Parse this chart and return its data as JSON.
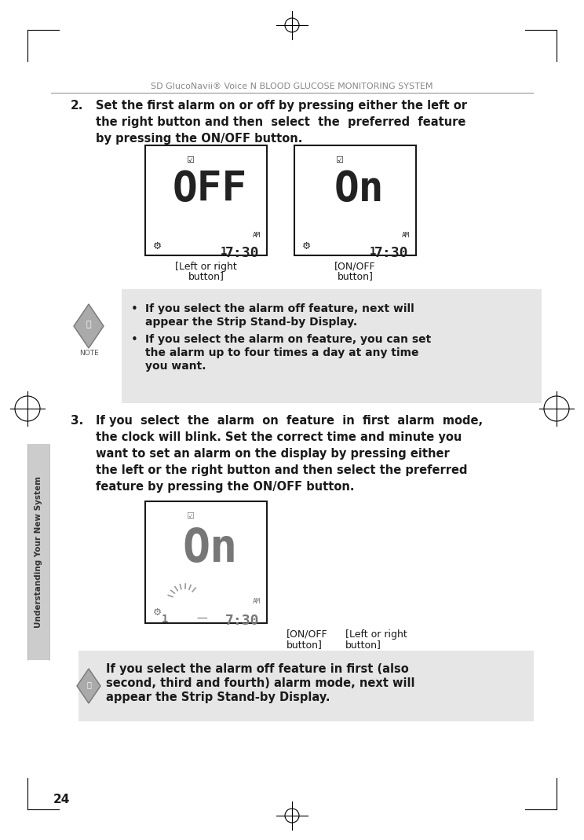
{
  "bg_color": "#ffffff",
  "header_text": "SD GlucoNavii® Voice N BLOOD GLUCOSE MONITORING SYSTEM",
  "header_color": "#888888",
  "sidebar_text": "Understanding Your New System",
  "sidebar_color": "#333333",
  "sidebar_bg": "#cccccc",
  "page_number": "24",
  "item2_line1": "Set the ﬁrst alarm on or off by pressing either the left or",
  "item2_line2": "the right button and then  select  the  preferred  feature",
  "item2_line3": "by pressing the ON/OFF button.",
  "note_b1_l1": "If you select the alarm off feature, next will",
  "note_b1_l2": "appear the Strip Stand-by Display.",
  "note_b2_l1": "If you select the alarm on feature, you can set",
  "note_b2_l2": "the alarm up to four times a day at any time",
  "note_b2_l3": "you want.",
  "note_bg": "#e6e6e6",
  "item3_line1": "If you  select  the  alarm  on  feature  in  ﬁrst  alarm  mode,",
  "item3_line2": "the clock will blink. Set the correct time and minute you",
  "item3_line3": "want to set an alarm on the display by pressing either",
  "item3_line4": "the left or the right button and then select the preferred",
  "item3_line5": "feature by pressing the ON/OFF button.",
  "bot_note_l1": "If you select the alarm off feature in ﬁrst (also",
  "bot_note_l2": "second, third and fourth) alarm mode, next will",
  "bot_note_l3": "appear the Strip Stand-by Display.",
  "text_color": "#1a1a1a",
  "box_edge": "#1a1a1a",
  "lcd_dark": "#222222",
  "lcd_grey": "#777777"
}
